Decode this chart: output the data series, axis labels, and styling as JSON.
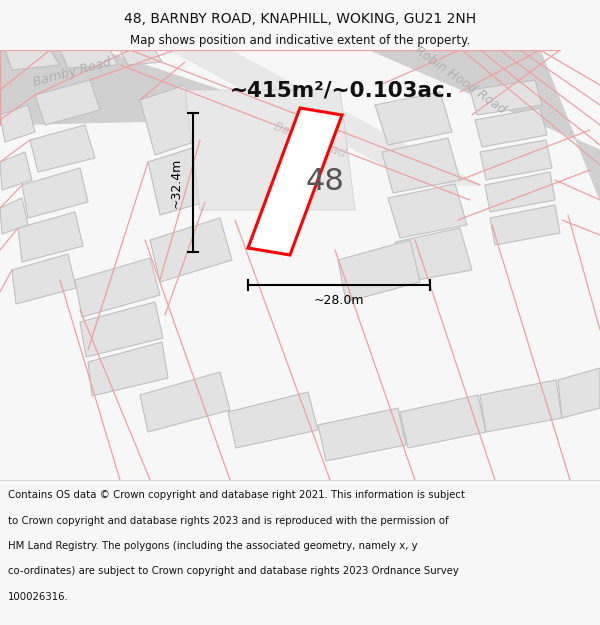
{
  "title": "48, BARNBY ROAD, KNAPHILL, WOKING, GU21 2NH",
  "subtitle": "Map shows position and indicative extent of the property.",
  "footer_lines": [
    "Contains OS data © Crown copyright and database right 2021. This information is subject",
    "to Crown copyright and database rights 2023 and is reproduced with the permission of",
    "HM Land Registry. The polygons (including the associated geometry, namely x, y",
    "co-ordinates) are subject to Crown copyright and database rights 2023 Ordnance Survey",
    "100026316."
  ],
  "area_label": "~415m²/~0.103ac.",
  "house_number": "48",
  "dim_width": "~28.0m",
  "dim_height": "~32.4m",
  "bg_color": "#f7f7f7",
  "map_bg": "#ffffff",
  "highlight_fill": "#ffffff",
  "highlight_stroke": "#ff0000",
  "road_gray": "#d0d0d0",
  "building_fill": "#e2e2e2",
  "building_stroke": "#c0c0c0",
  "road_pink": "#f0a0a0",
  "road_label_color": "#b0b0b0",
  "title_color": "#111111",
  "footer_color": "#111111",
  "dim_color": "#000000",
  "area_color": "#111111"
}
